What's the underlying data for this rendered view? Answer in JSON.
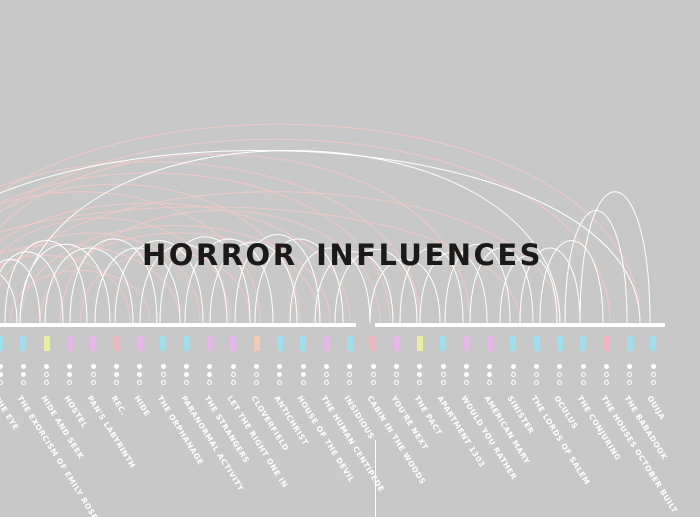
{
  "title": "HORROR INFLUENCES",
  "colors": {
    "background": "#c8c8c8",
    "arc": "#f0c8c8",
    "arc_white": "#ffffff",
    "axis": "#ffffff",
    "title": "#1a1a1a"
  },
  "films": [
    {
      "label": "THE EYE",
      "swatch": "#9fe0ee",
      "dots": [
        1,
        1,
        0
      ]
    },
    {
      "label": "THE EXORCISM OF EMILY ROSE",
      "swatch": "#9fe0ee",
      "dots": [
        1,
        1,
        0
      ]
    },
    {
      "label": "HIDE AND SEEK",
      "swatch": "#ecee9f",
      "dots": [
        1,
        0,
        0
      ]
    },
    {
      "label": "HOSTEL",
      "swatch": "#e8b6ea",
      "dots": [
        1,
        1,
        0
      ]
    },
    {
      "label": "PAN'S LABYRINTH",
      "swatch": "#e8b6ea",
      "dots": [
        1,
        0,
        0
      ]
    },
    {
      "label": "REC.",
      "swatch": "#f0b4c0",
      "dots": [
        1,
        1,
        0
      ]
    },
    {
      "label": "HIDE",
      "swatch": "#e8b6ea",
      "dots": [
        1,
        1,
        0
      ]
    },
    {
      "label": "THE ORPHANAGE",
      "swatch": "#9fe0ee",
      "dots": [
        1,
        0,
        0
      ]
    },
    {
      "label": "PARANORMAL ACTIVITY",
      "swatch": "#9fe0ee",
      "dots": [
        1,
        1,
        0
      ]
    },
    {
      "label": "THE STRANGERS",
      "swatch": "#e8b6ea",
      "dots": [
        1,
        1,
        0
      ]
    },
    {
      "label": "LET THE RIGHT ONE IN",
      "swatch": "#e8b6ea",
      "dots": [
        1,
        0,
        0
      ]
    },
    {
      "label": "CLOVERFIELD",
      "swatch": "#f0cdb4",
      "dots": [
        1,
        0,
        0
      ]
    },
    {
      "label": "ANTICHRIST",
      "swatch": "#9fe0ee",
      "dots": [
        1,
        1,
        0
      ]
    },
    {
      "label": "HOUSE OF THE DEVIL",
      "swatch": "#9fe0ee",
      "dots": [
        1,
        1,
        0
      ]
    },
    {
      "label": "THE HUMAN CENTIPEDE",
      "swatch": "#e8b6ea",
      "dots": [
        1,
        0,
        0
      ]
    },
    {
      "label": "INSIDIOUS",
      "swatch": "#9fe0ee",
      "dots": [
        1,
        0,
        0
      ]
    },
    {
      "label": "CABIN IN THE WOODS",
      "swatch": "#f0b4c0",
      "dots": [
        1,
        0,
        0
      ]
    },
    {
      "label": "YOU'RE NEXT",
      "swatch": "#e8b6ea",
      "dots": [
        1,
        0,
        0
      ]
    },
    {
      "label": "THE PACT",
      "swatch": "#ecee9f",
      "dots": [
        1,
        1,
        0
      ]
    },
    {
      "label": "APARTMENT 1303",
      "swatch": "#9fe0ee",
      "dots": [
        1,
        0,
        0
      ]
    },
    {
      "label": "WOULD YOU RATHER",
      "swatch": "#e8b6ea",
      "dots": [
        1,
        1,
        0
      ]
    },
    {
      "label": "AMERICAN MARY",
      "swatch": "#e8b6ea",
      "dots": [
        1,
        1,
        0
      ]
    },
    {
      "label": "SINISTER",
      "swatch": "#9fe0ee",
      "dots": [
        1,
        0,
        0
      ]
    },
    {
      "label": "THE LORDS OF SALEM",
      "swatch": "#9fe0ee",
      "dots": [
        1,
        0,
        0
      ]
    },
    {
      "label": "OCULUS",
      "swatch": "#9fe0ee",
      "dots": [
        1,
        0,
        0
      ]
    },
    {
      "label": "THE CONJURING",
      "swatch": "#9fe0ee",
      "dots": [
        1,
        0,
        0
      ]
    },
    {
      "label": "THE HOUSES OCTOBER BUILT",
      "swatch": "#f0b4c0",
      "dots": [
        1,
        0,
        0
      ]
    },
    {
      "label": "THE BABADOOK",
      "swatch": "#9fe0ee",
      "dots": [
        1,
        0,
        0
      ]
    },
    {
      "label": "OUIJA",
      "swatch": "#9fe0ee",
      "dots": [
        1,
        0,
        0
      ]
    }
  ]
}
